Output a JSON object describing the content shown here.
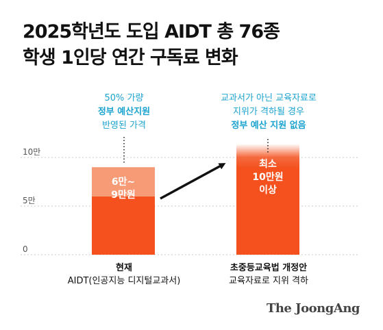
{
  "title": {
    "line1": "2025학년도 도입 AIDT 총 76종",
    "line2": "학생 1인당 연간 구독료  변화"
  },
  "annotations": {
    "left": {
      "line1": "50% 가량",
      "line2": "정부 예산지원",
      "line3": "반영된 가격"
    },
    "right": {
      "line1": "교과서가 아닌 교육자료로",
      "line2": "지위가 격하될 경우",
      "line3": "정부 예산 지원 없음"
    }
  },
  "xlabels": {
    "left": {
      "line1": "현재",
      "line2": "AIDT(인공지능 디지털교과서)"
    },
    "right": {
      "line1": "초중등교육법 개정안",
      "line2": "교육자료로 지위 격하"
    }
  },
  "brand": "The JoongAng",
  "colors": {
    "bar_main": "#f4511e",
    "bar_range_light": "#f79a76",
    "annotation": "#1ba3cf",
    "grid": "#c8c8c8",
    "axis_text": "#555555",
    "arrow": "#111111"
  },
  "chart_data": {
    "type": "bar",
    "categories": [
      "현재",
      "초중등교육법 개정안"
    ],
    "y_ticks": [
      {
        "value": 0,
        "label": "0"
      },
      {
        "value": 5,
        "label": "5만"
      },
      {
        "value": 10,
        "label": "10만"
      }
    ],
    "ylim": [
      0,
      10
    ],
    "bars": [
      {
        "category": "현재",
        "low": 6,
        "high": 9,
        "label_lines": [
          "6만~",
          "9만원"
        ]
      },
      {
        "category": "초중등교육법 개정안",
        "low": 10,
        "high": 10,
        "open_top": true,
        "label_lines": [
          "최소",
          "10만원",
          "이상"
        ]
      }
    ],
    "grid": true
  }
}
